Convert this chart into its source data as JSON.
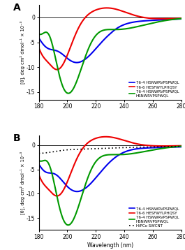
{
  "xlim": [
    180,
    280
  ],
  "ylim_A": [
    -16.5,
    2.5
  ],
  "ylim_B": [
    -17.5,
    2.0
  ],
  "xlabel": "Wavelength (nm)",
  "ylabel": "[θ], deg cm² dmol⁻¹ × 10⁻³",
  "xticks": [
    180,
    200,
    220,
    240,
    260,
    280
  ],
  "yticks_A": [
    -15,
    -10,
    -5,
    0
  ],
  "yticks_B": [
    -15,
    -10,
    -5,
    0
  ],
  "panel_A_label": "A",
  "panel_B_label": "B",
  "legend_A": [
    {
      "label": "76-4 HSNWRVPSPWQL",
      "color": "#0000EE"
    },
    {
      "label": "76-6 HESFWYLPHQSY",
      "color": "#EE0000"
    },
    {
      "label": "76-4 HSNWRVPSPWQL\nHSNWRVPSPWQL",
      "color": "#009900"
    }
  ],
  "legend_B": [
    {
      "label": "76-4 HSNWRVPSPWQL",
      "color": "#0000EE"
    },
    {
      "label": "76-6 HESFWYLPHQSY",
      "color": "#EE0000"
    },
    {
      "label": "76-4 HSNWRVPSPWQL\nHSNWRVPSPWQL",
      "color": "#009900"
    },
    {
      "label": "HiPCo SWCNT",
      "color": "#000000",
      "linestyle": "dotted"
    }
  ],
  "background_color": "#ffffff",
  "curve_colors": {
    "blue": "#0000EE",
    "red": "#EE0000",
    "green": "#009900",
    "black": "#000000"
  }
}
